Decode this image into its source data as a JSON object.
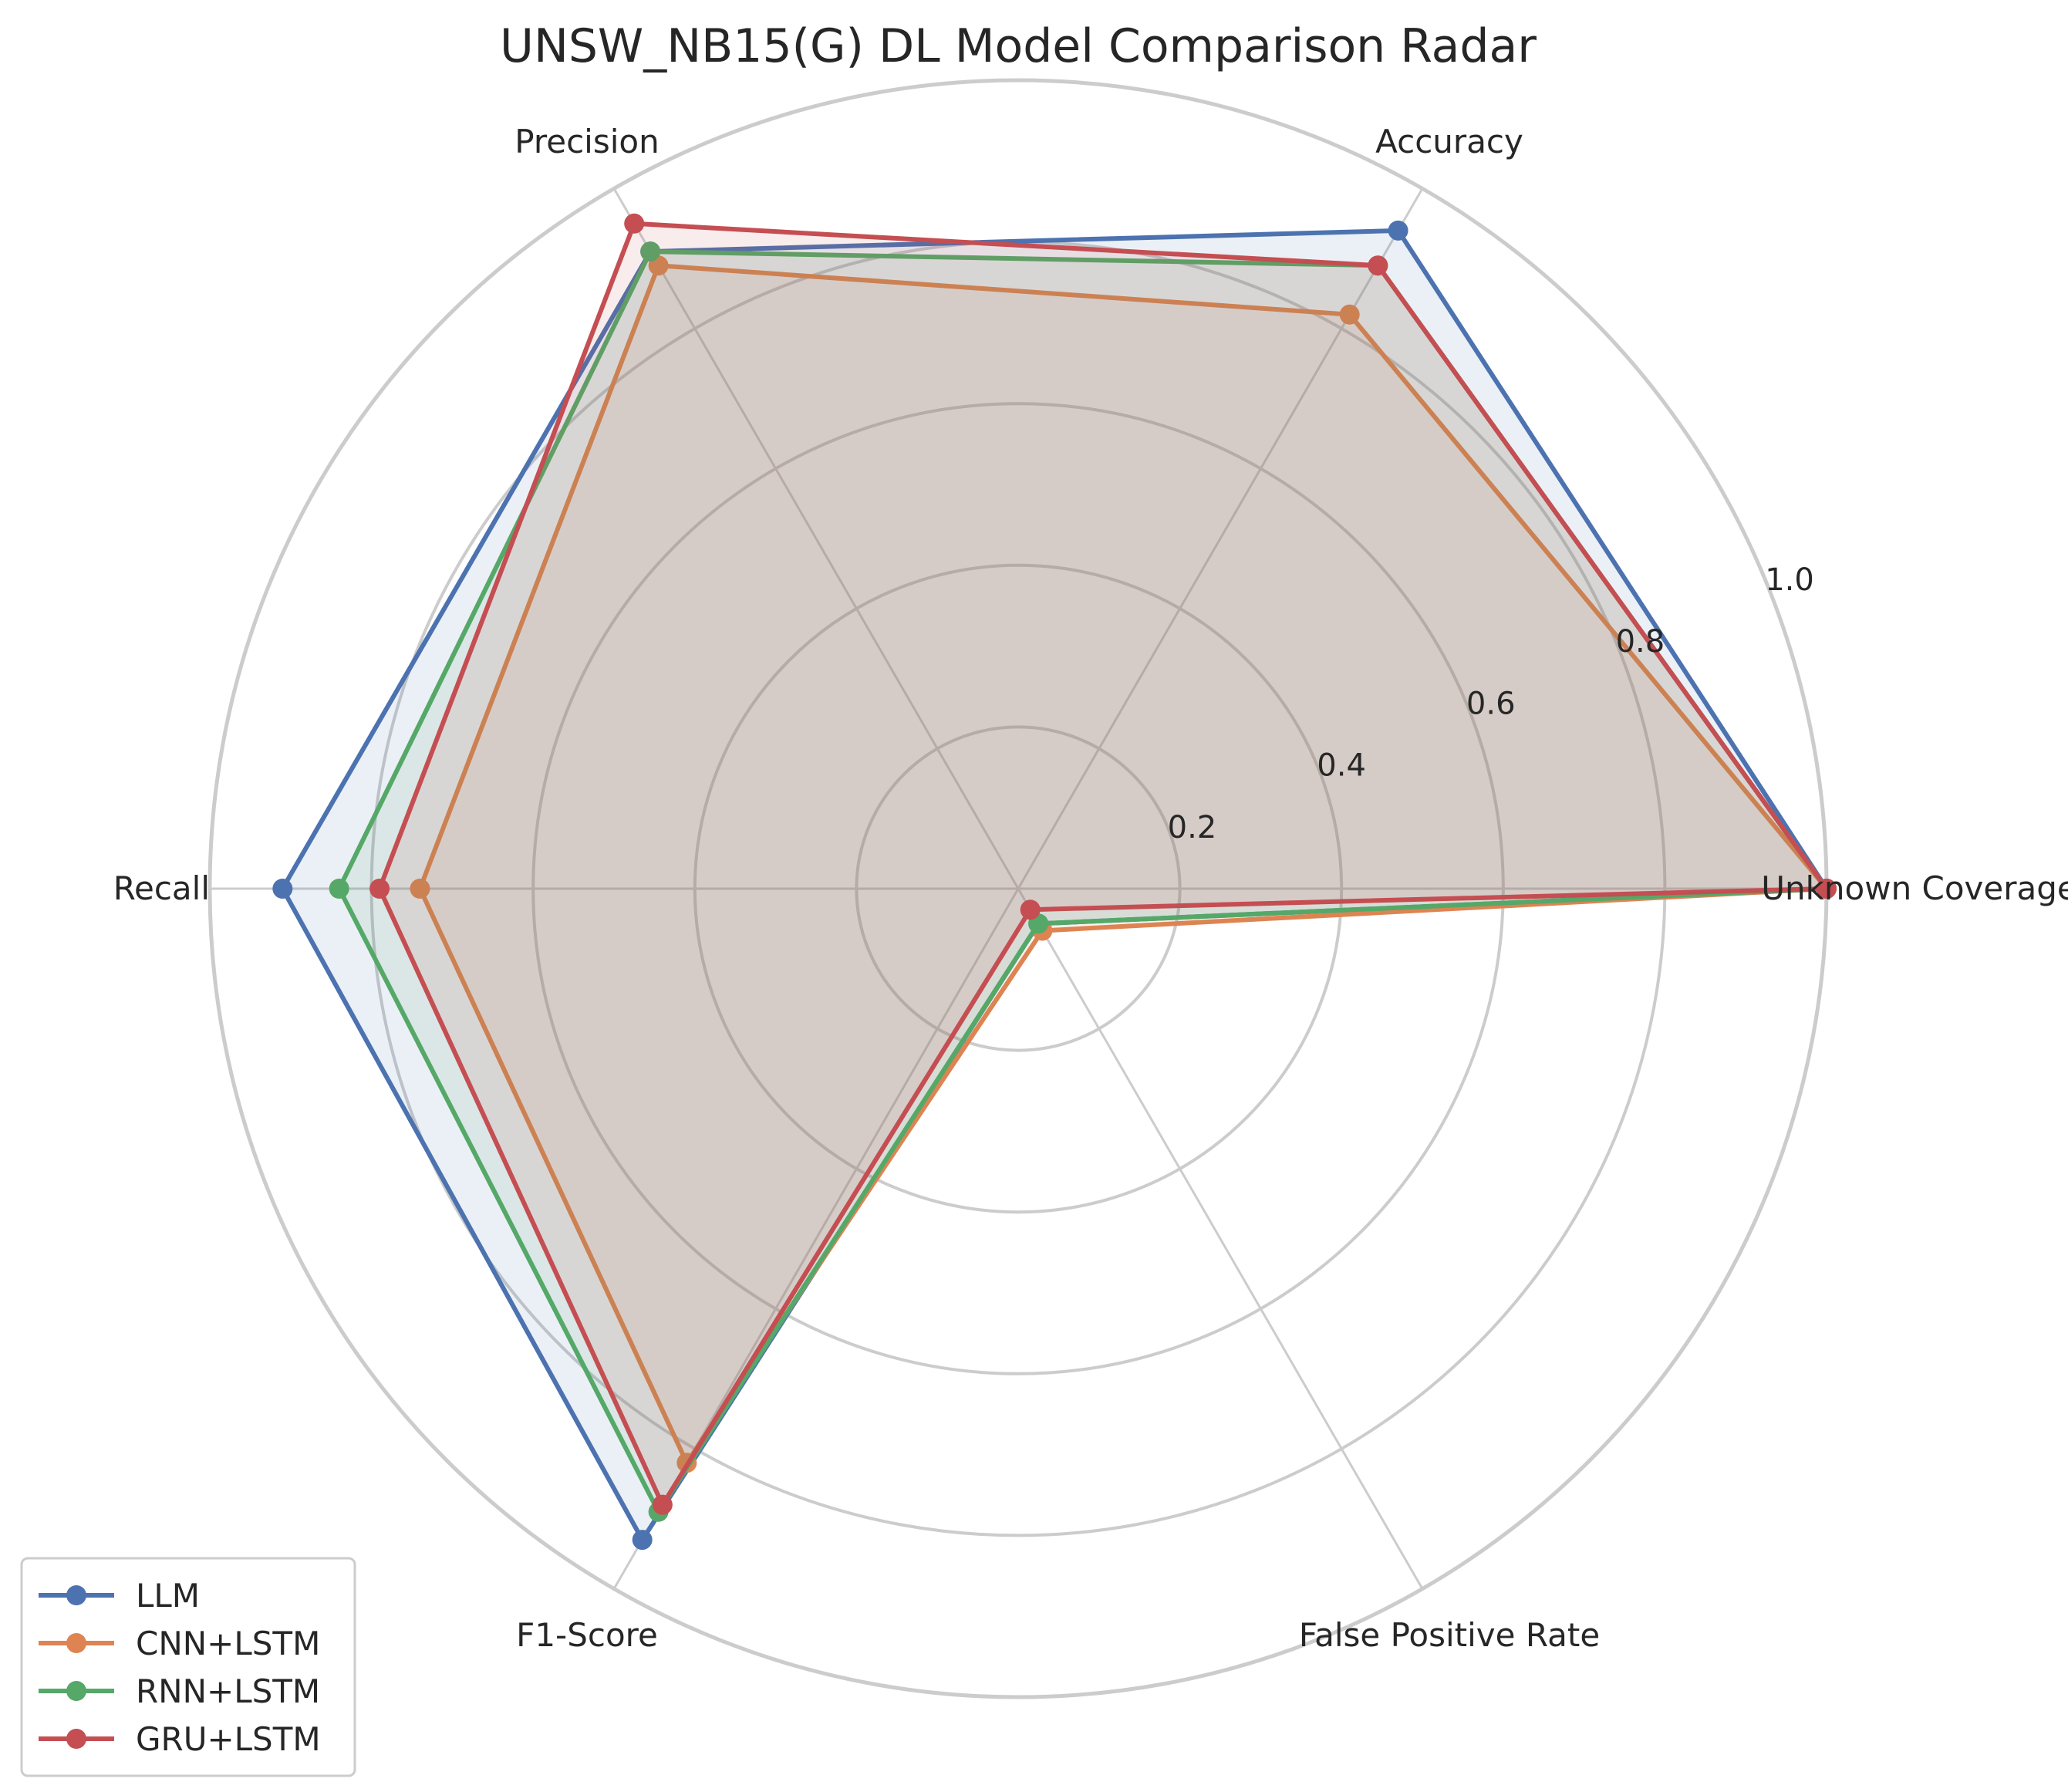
{
  "chart_data": {
    "type": "radar",
    "title": "UNSW_NB15(G) DL Model Comparison Radar",
    "axes": [
      "Unknown Coverage",
      "Accuracy",
      "Precision",
      "Recall",
      "F1-Score",
      "False Positive Rate"
    ],
    "rlim": [
      0,
      1.0
    ],
    "rticks": [
      0.2,
      0.4,
      0.6,
      0.8,
      1.0
    ],
    "rtick_labels": [
      "0.2",
      "0.4",
      "0.6",
      "0.8",
      "1.0"
    ],
    "grid": true,
    "legend_position": "lower-left",
    "series": [
      {
        "name": "LLM",
        "color": "#4c72b0",
        "values": [
          1.0,
          0.94,
          0.91,
          0.91,
          0.93,
          0.05
        ]
      },
      {
        "name": "CNN+LSTM",
        "color": "#dd8452",
        "values": [
          1.0,
          0.82,
          0.89,
          0.74,
          0.82,
          0.06
        ]
      },
      {
        "name": "RNN+LSTM",
        "color": "#55a868",
        "values": [
          1.0,
          0.89,
          0.91,
          0.84,
          0.89,
          0.05
        ]
      },
      {
        "name": "GRU+LSTM",
        "color": "#c44e52",
        "values": [
          1.0,
          0.89,
          0.95,
          0.79,
          0.88,
          0.03
        ]
      }
    ]
  }
}
